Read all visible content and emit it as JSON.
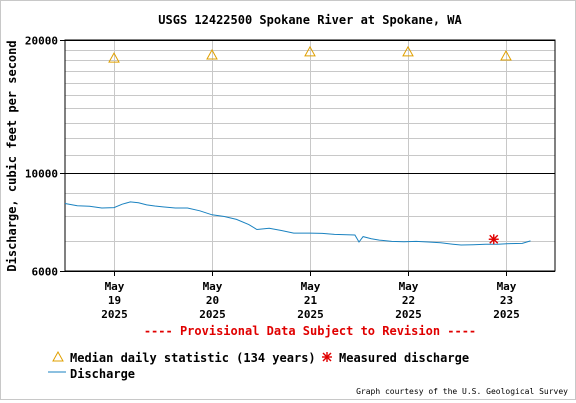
{
  "chart_data": {
    "type": "line",
    "title": "USGS 12422500 Spokane River at Spokane, WA",
    "ylabel": "Discharge, cubic feet per second",
    "xlabel": "",
    "y_scale": "log",
    "ylim": [
      6000,
      20000
    ],
    "y_ticks": [
      6000,
      10000,
      20000
    ],
    "y_tick_labels": [
      "6000",
      "10000",
      "20000"
    ],
    "y_minor_gridlines": [
      7000,
      8000,
      9000,
      11000,
      12000,
      13000,
      14000,
      15000,
      16000,
      17000,
      18000,
      19000
    ],
    "xlim": [
      "2025-05-18T12:00",
      "2025-05-23T12:00"
    ],
    "x_ticks": [
      {
        "x": "2025-05-19",
        "month": "May",
        "day": "19",
        "year": "2025"
      },
      {
        "x": "2025-05-20",
        "month": "May",
        "day": "20",
        "year": "2025"
      },
      {
        "x": "2025-05-21",
        "month": "May",
        "day": "21",
        "year": "2025"
      },
      {
        "x": "2025-05-22",
        "month": "May",
        "day": "22",
        "year": "2025"
      },
      {
        "x": "2025-05-23",
        "month": "May",
        "day": "23",
        "year": "2025"
      }
    ],
    "grid": true,
    "series": [
      {
        "name": "Discharge",
        "kind": "line",
        "color": "#1a82c0",
        "points": [
          [
            "2025-05-18T12:00",
            8530
          ],
          [
            "2025-05-18T15:00",
            8430
          ],
          [
            "2025-05-18T18:00",
            8410
          ],
          [
            "2025-05-18T21:00",
            8330
          ],
          [
            "2025-05-19T00:00",
            8350
          ],
          [
            "2025-05-19T02:00",
            8500
          ],
          [
            "2025-05-19T04:00",
            8600
          ],
          [
            "2025-05-19T06:00",
            8560
          ],
          [
            "2025-05-19T08:00",
            8470
          ],
          [
            "2025-05-19T10:00",
            8420
          ],
          [
            "2025-05-19T12:00",
            8380
          ],
          [
            "2025-05-19T15:00",
            8330
          ],
          [
            "2025-05-19T18:00",
            8330
          ],
          [
            "2025-05-19T21:00",
            8210
          ],
          [
            "2025-05-20T00:00",
            8040
          ],
          [
            "2025-05-20T03:00",
            7970
          ],
          [
            "2025-05-20T06:00",
            7850
          ],
          [
            "2025-05-20T09:00",
            7640
          ],
          [
            "2025-05-20T11:00",
            7450
          ],
          [
            "2025-05-20T14:00",
            7500
          ],
          [
            "2025-05-20T17:00",
            7410
          ],
          [
            "2025-05-20T20:00",
            7310
          ],
          [
            "2025-05-21T00:00",
            7310
          ],
          [
            "2025-05-21T03:00",
            7300
          ],
          [
            "2025-05-21T06:00",
            7260
          ],
          [
            "2025-05-21T09:00",
            7250
          ],
          [
            "2025-05-21T11:00",
            7240
          ],
          [
            "2025-05-21T12:00",
            6980
          ],
          [
            "2025-05-21T13:00",
            7180
          ],
          [
            "2025-05-21T15:00",
            7100
          ],
          [
            "2025-05-21T17:00",
            7050
          ],
          [
            "2025-05-21T20:00",
            7000
          ],
          [
            "2025-05-21T23:00",
            6990
          ],
          [
            "2025-05-22T02:00",
            7000
          ],
          [
            "2025-05-22T05:00",
            6980
          ],
          [
            "2025-05-22T08:00",
            6950
          ],
          [
            "2025-05-22T11:00",
            6900
          ],
          [
            "2025-05-22T13:00",
            6870
          ],
          [
            "2025-05-22T16:00",
            6880
          ],
          [
            "2025-05-22T19:00",
            6900
          ],
          [
            "2025-05-22T22:00",
            6900
          ],
          [
            "2025-05-23T01:00",
            6920
          ],
          [
            "2025-05-23T04:00",
            6930
          ],
          [
            "2025-05-23T06:00",
            7020
          ]
        ]
      },
      {
        "name": "Median daily statistic (134 years)",
        "kind": "marker",
        "marker": "triangle",
        "color": "#e0a000",
        "points": [
          [
            "2025-05-19T00:00",
            18200
          ],
          [
            "2025-05-20T00:00",
            18500
          ],
          [
            "2025-05-21T00:00",
            18800
          ],
          [
            "2025-05-22T00:00",
            18800
          ],
          [
            "2025-05-23T00:00",
            18400
          ]
        ]
      },
      {
        "name": "Measured discharge",
        "kind": "marker",
        "marker": "asterisk",
        "color": "#e00000",
        "points": [
          [
            "2025-05-22T21:00",
            7080
          ]
        ]
      }
    ],
    "legend_position": "bottom",
    "annotation": "---- Provisional Data Subject to Revision ----",
    "annotation_color": "#e00000",
    "credit": "Graph courtesy of the U.S. Geological Survey"
  }
}
